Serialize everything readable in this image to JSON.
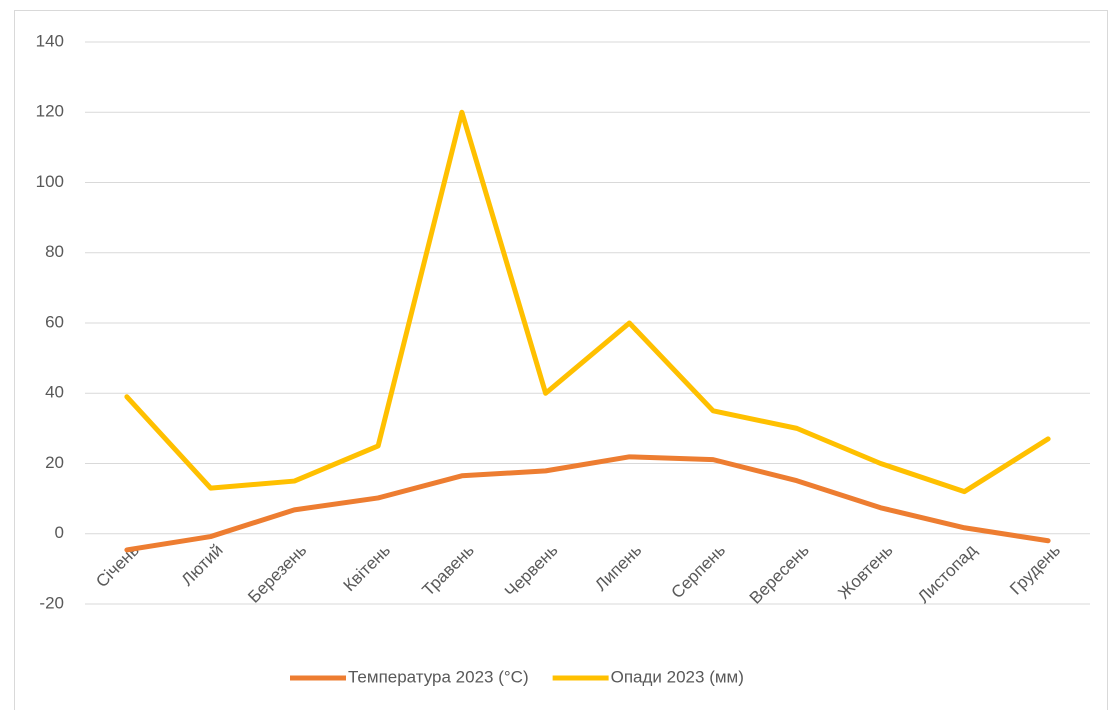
{
  "chart_data": {
    "type": "line",
    "categories": [
      "Січень",
      "Лютий",
      "Березень",
      "Квітень",
      "Травень",
      "Червень",
      "Липень",
      "Серпень",
      "Вересень",
      "Жовтень",
      "Листопад",
      "Грудень"
    ],
    "series": [
      {
        "name": "Температура 2023 (°C)",
        "color": "#ed7d31",
        "values": [
          -4.6,
          -0.8,
          6.8,
          10.2,
          16.5,
          17.9,
          21.9,
          21.1,
          15.1,
          7.4,
          1.7,
          -2
        ]
      },
      {
        "name": "Опади 2023 (мм)",
        "color": "#ffc000",
        "values": [
          39,
          13,
          15,
          25,
          120,
          40,
          60,
          35,
          30,
          20,
          12,
          27
        ]
      }
    ],
    "ylim": [
      -20,
      140
    ],
    "yticks": [
      -20,
      0,
      20,
      40,
      60,
      80,
      100,
      120,
      140
    ],
    "grid": true,
    "legend": "bottom"
  }
}
